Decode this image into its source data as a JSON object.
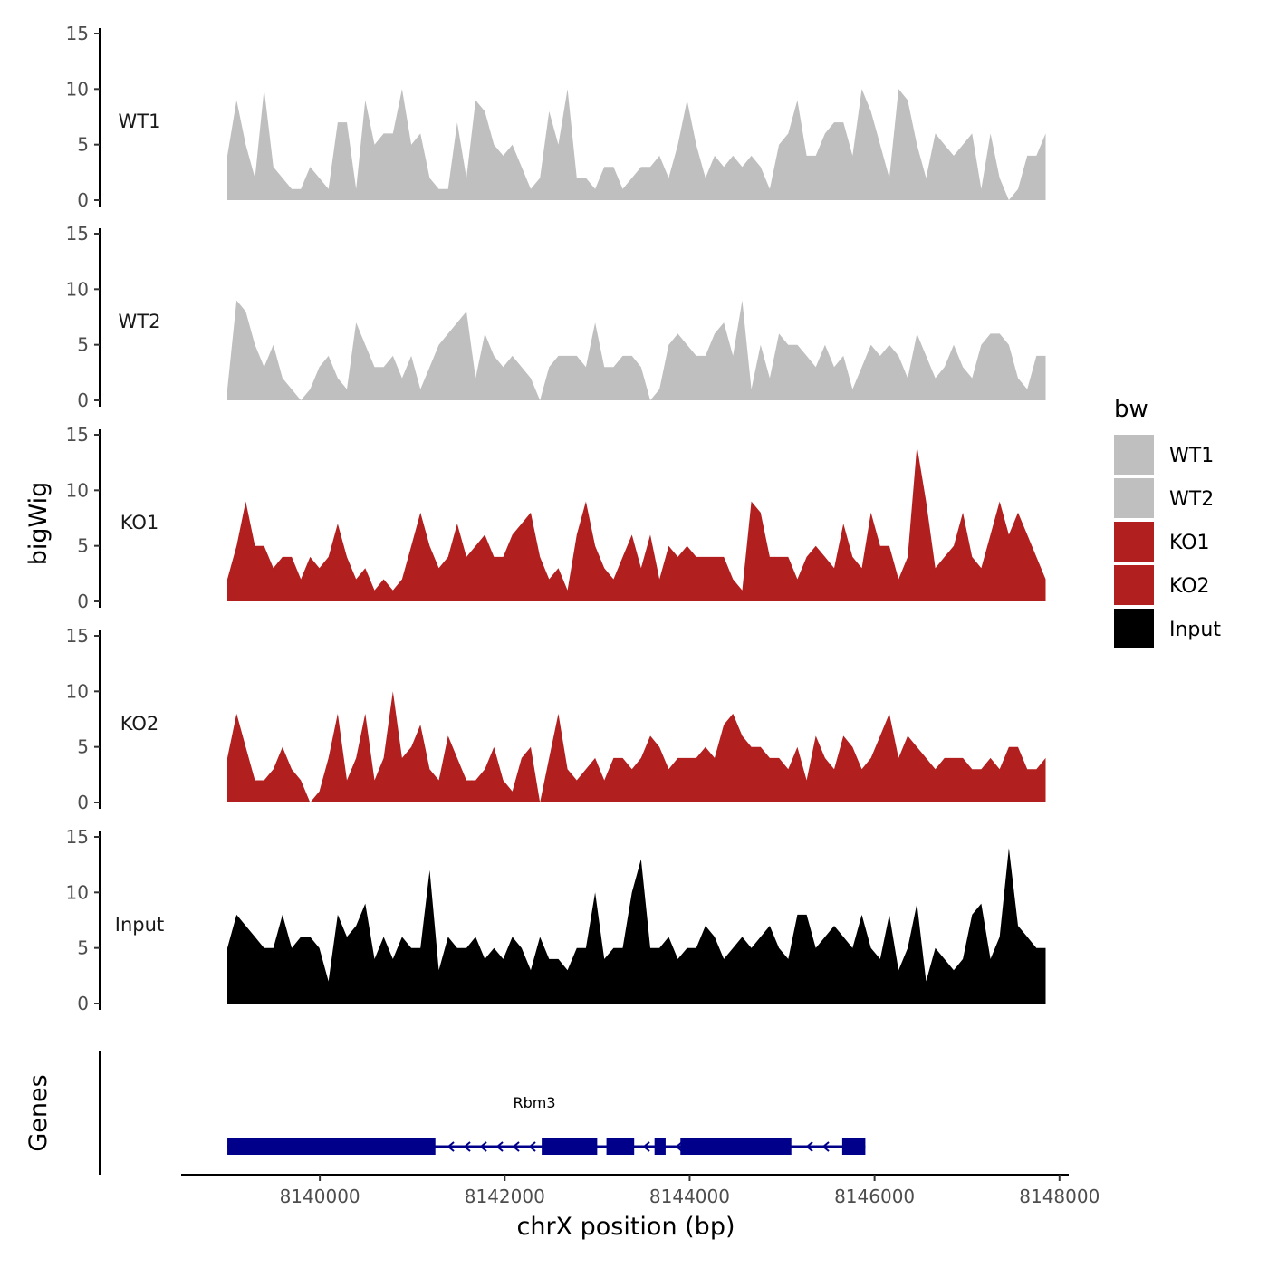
{
  "chart_data": {
    "type": "area",
    "title": "",
    "xlabel": "chrX position (bp)",
    "ylabel": "bigWig",
    "genes_label": "Genes",
    "xlim": [
      8138500,
      8148100
    ],
    "xticks": [
      8140000,
      8142000,
      8144000,
      8146000,
      8148000
    ],
    "xtick_labels": [
      "8140000",
      "8142000",
      "8144000",
      "8146000",
      "8148000"
    ],
    "ylim": [
      0,
      15
    ],
    "yticks": [
      0,
      5,
      10,
      15
    ],
    "ytick_labels": [
      "0",
      "5",
      "10",
      "15"
    ],
    "x_start": 8139000,
    "x_end": 8147850,
    "legend": {
      "title": "bw",
      "position": "right"
    },
    "series": [
      {
        "name": "WT1",
        "color": "#bfbfbf",
        "values": [
          4,
          9,
          5,
          2,
          10,
          3,
          2,
          1,
          1,
          3,
          2,
          1,
          7,
          7,
          1,
          9,
          5,
          6,
          6,
          10,
          5,
          6,
          2,
          1,
          1,
          7,
          2,
          9,
          8,
          5,
          4,
          5,
          3,
          1,
          2,
          8,
          5,
          10,
          2,
          2,
          1,
          3,
          3,
          1,
          2,
          3,
          3,
          4,
          2,
          5,
          9,
          5,
          2,
          4,
          3,
          4,
          3,
          4,
          3,
          1,
          5,
          6,
          9,
          4,
          4,
          6,
          7,
          7,
          4,
          10,
          8,
          5,
          2,
          10,
          9,
          5,
          2,
          6,
          5,
          4,
          5,
          6,
          1,
          6,
          2,
          0,
          1,
          4,
          4,
          6
        ]
      },
      {
        "name": "WT2",
        "color": "#bfbfbf",
        "values": [
          1,
          9,
          8,
          5,
          3,
          5,
          2,
          1,
          0,
          1,
          3,
          4,
          2,
          1,
          7,
          5,
          3,
          3,
          4,
          2,
          4,
          1,
          3,
          5,
          6,
          7,
          8,
          2,
          6,
          4,
          3,
          4,
          3,
          2,
          0,
          3,
          4,
          4,
          4,
          3,
          7,
          3,
          3,
          4,
          4,
          3,
          0,
          1,
          5,
          6,
          5,
          4,
          4,
          6,
          7,
          4,
          9,
          1,
          5,
          2,
          6,
          5,
          5,
          4,
          3,
          5,
          3,
          4,
          1,
          3,
          5,
          4,
          5,
          4,
          2,
          6,
          4,
          2,
          3,
          5,
          3,
          2,
          5,
          6,
          6,
          5,
          2,
          1,
          4,
          4
        ]
      },
      {
        "name": "KO1",
        "color": "#b11f1f",
        "values": [
          2,
          5,
          9,
          5,
          5,
          3,
          4,
          4,
          2,
          4,
          3,
          4,
          7,
          4,
          2,
          3,
          1,
          2,
          1,
          2,
          5,
          8,
          5,
          3,
          4,
          7,
          4,
          5,
          6,
          4,
          4,
          6,
          7,
          8,
          4,
          2,
          3,
          1,
          6,
          9,
          5,
          3,
          2,
          4,
          6,
          3,
          6,
          2,
          5,
          4,
          5,
          4,
          4,
          4,
          4,
          2,
          1,
          9,
          8,
          4,
          4,
          4,
          2,
          4,
          5,
          4,
          3,
          7,
          4,
          3,
          8,
          5,
          5,
          2,
          4,
          14,
          9,
          3,
          4,
          5,
          8,
          4,
          3,
          6,
          9,
          6,
          8,
          6,
          4,
          2
        ]
      },
      {
        "name": "KO2",
        "color": "#b11f1f",
        "values": [
          4,
          8,
          5,
          2,
          2,
          3,
          5,
          3,
          2,
          0,
          1,
          4,
          8,
          2,
          4,
          8,
          2,
          4,
          10,
          4,
          5,
          7,
          3,
          2,
          6,
          4,
          2,
          2,
          3,
          5,
          2,
          1,
          4,
          5,
          0,
          4,
          8,
          3,
          2,
          3,
          4,
          2,
          4,
          4,
          3,
          4,
          6,
          5,
          3,
          4,
          4,
          4,
          5,
          4,
          7,
          8,
          6,
          5,
          5,
          4,
          4,
          3,
          5,
          2,
          6,
          4,
          3,
          6,
          5,
          3,
          4,
          6,
          8,
          4,
          6,
          5,
          4,
          3,
          4,
          4,
          4,
          3,
          3,
          4,
          3,
          5,
          5,
          3,
          3,
          4
        ]
      },
      {
        "name": "Input",
        "color": "#000000",
        "values": [
          5,
          8,
          7,
          6,
          5,
          5,
          8,
          5,
          6,
          6,
          5,
          2,
          8,
          6,
          7,
          9,
          4,
          6,
          4,
          6,
          5,
          5,
          12,
          3,
          6,
          5,
          5,
          6,
          4,
          5,
          4,
          6,
          5,
          3,
          6,
          4,
          4,
          3,
          5,
          5,
          10,
          4,
          5,
          5,
          10,
          13,
          5,
          5,
          6,
          4,
          5,
          5,
          7,
          6,
          4,
          5,
          6,
          5,
          6,
          7,
          5,
          4,
          8,
          8,
          5,
          6,
          7,
          6,
          5,
          8,
          5,
          4,
          8,
          3,
          5,
          9,
          2,
          5,
          4,
          3,
          4,
          8,
          9,
          4,
          6,
          14,
          7,
          6,
          5,
          5
        ]
      }
    ],
    "genes": [
      {
        "name": "Rbm3",
        "start": 8139000,
        "end": 8145900,
        "strand": "-",
        "exons": [
          [
            8139000,
            8141250
          ],
          [
            8142400,
            8143000
          ],
          [
            8143100,
            8143400
          ],
          [
            8143620,
            8143740
          ],
          [
            8143900,
            8145100
          ],
          [
            8145650,
            8145900
          ]
        ]
      }
    ]
  }
}
